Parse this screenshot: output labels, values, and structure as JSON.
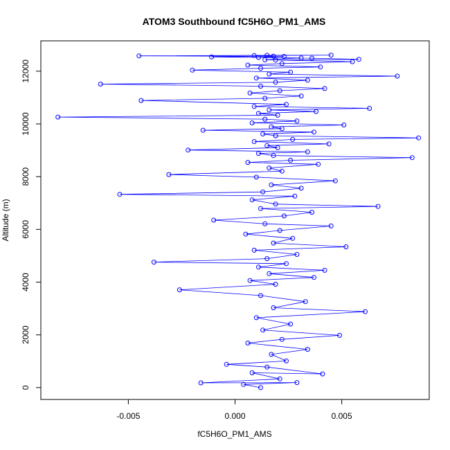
{
  "chart_data": {
    "type": "scatter",
    "title": "ATOM3 Southbound fC5H6O_PM1_AMS",
    "xlabel": "fC5H6O_PM1_AMS",
    "ylabel": "Altitude (m)",
    "xlim": [
      -0.0091,
      0.0091
    ],
    "ylim": [
      -450,
      13150
    ],
    "xticks": [
      -0.005,
      0.0,
      0.005
    ],
    "xtick_labels": [
      "-0.005",
      "0.000",
      "0.005"
    ],
    "yticks": [
      0,
      2000,
      4000,
      6000,
      8000,
      10000,
      12000
    ],
    "ytick_labels": [
      "0",
      "2000",
      "4000",
      "6000",
      "8000",
      "10000",
      "12000"
    ],
    "grid": false,
    "marker": "open-circle",
    "connected": true,
    "series_color": "#0000ff",
    "series": [
      {
        "x": [
          0.0012,
          0.0004,
          0.0029,
          -0.0016,
          0.0021,
          0.0008,
          0.0041,
          0.0015,
          -0.0004,
          0.0024,
          0.0017,
          0.0034,
          0.0006,
          0.0022,
          0.0049,
          0.0013,
          0.0026,
          0.001,
          0.0061,
          0.0018,
          0.0033,
          0.0012,
          -0.0026,
          0.0019,
          0.0007,
          0.0037,
          0.0016,
          0.0042,
          0.0011,
          0.0024,
          -0.0038,
          0.0015,
          0.0029,
          0.0009,
          0.0052,
          0.0018,
          0.0027,
          0.0005,
          0.0021,
          0.0045,
          0.0014,
          -0.001,
          0.0023,
          0.0036,
          0.0012,
          0.0067,
          0.0019,
          0.0008,
          0.0028,
          -0.0054,
          0.0013,
          0.0031,
          0.0017,
          0.0047,
          0.001,
          -0.0031,
          0.0022,
          0.0016,
          0.0039,
          0.0006,
          0.0026,
          0.0083,
          0.0018,
          0.0011,
          0.0034,
          -0.0022,
          0.002,
          0.0015,
          0.0044,
          0.0009,
          0.0027,
          0.0086,
          0.0019,
          0.0013,
          0.0037,
          -0.0015,
          0.0022,
          0.0017,
          0.0051,
          0.0008,
          0.0029,
          0.0014,
          -0.0083,
          0.002,
          0.0011,
          0.0038,
          0.0016,
          0.0063,
          0.0009,
          0.0024,
          -0.0044,
          0.0014,
          0.0031,
          0.0007,
          0.0021,
          0.0042,
          0.0012,
          -0.0063,
          0.0019,
          0.0034,
          0.001,
          0.0076,
          0.0016,
          0.0026,
          -0.002,
          0.0012,
          0.004,
          0.0006,
          0.0022,
          0.0055,
          0.0014,
          0.0031,
          -0.0011,
          0.0018,
          0.0009,
          0.0045,
          0.0015,
          -0.0045,
          0.0023,
          0.0011,
          0.0036,
          0.0058,
          0.0019
        ],
        "y": [
          0,
          120,
          190,
          180,
          330,
          560,
          520,
          780,
          880,
          1010,
          1260,
          1450,
          1690,
          1830,
          1980,
          2180,
          2410,
          2650,
          2880,
          3030,
          3260,
          3490,
          3710,
          3920,
          4060,
          4180,
          4320,
          4450,
          4570,
          4700,
          4760,
          4890,
          5050,
          5210,
          5340,
          5480,
          5660,
          5820,
          5960,
          6130,
          6210,
          6350,
          6510,
          6650,
          6790,
          6870,
          6960,
          7120,
          7260,
          7330,
          7420,
          7560,
          7690,
          7840,
          7980,
          8080,
          8210,
          8330,
          8470,
          8540,
          8620,
          8720,
          8800,
          8880,
          8940,
          9010,
          9100,
          9180,
          9240,
          9330,
          9410,
          9470,
          9550,
          9620,
          9690,
          9760,
          9820,
          9890,
          9960,
          10040,
          10110,
          10180,
          10260,
          10330,
          10400,
          10470,
          10530,
          10590,
          10660,
          10740,
          10890,
          10970,
          11060,
          11170,
          11260,
          11340,
          11430,
          11510,
          11580,
          11660,
          11740,
          11810,
          11890,
          11960,
          12040,
          12110,
          12160,
          12230,
          12290,
          12360,
          12430,
          12500,
          12540,
          12570,
          12590,
          12610,
          12600,
          12580,
          12560,
          12520,
          12490,
          12450,
          12420
        ]
      }
    ]
  }
}
